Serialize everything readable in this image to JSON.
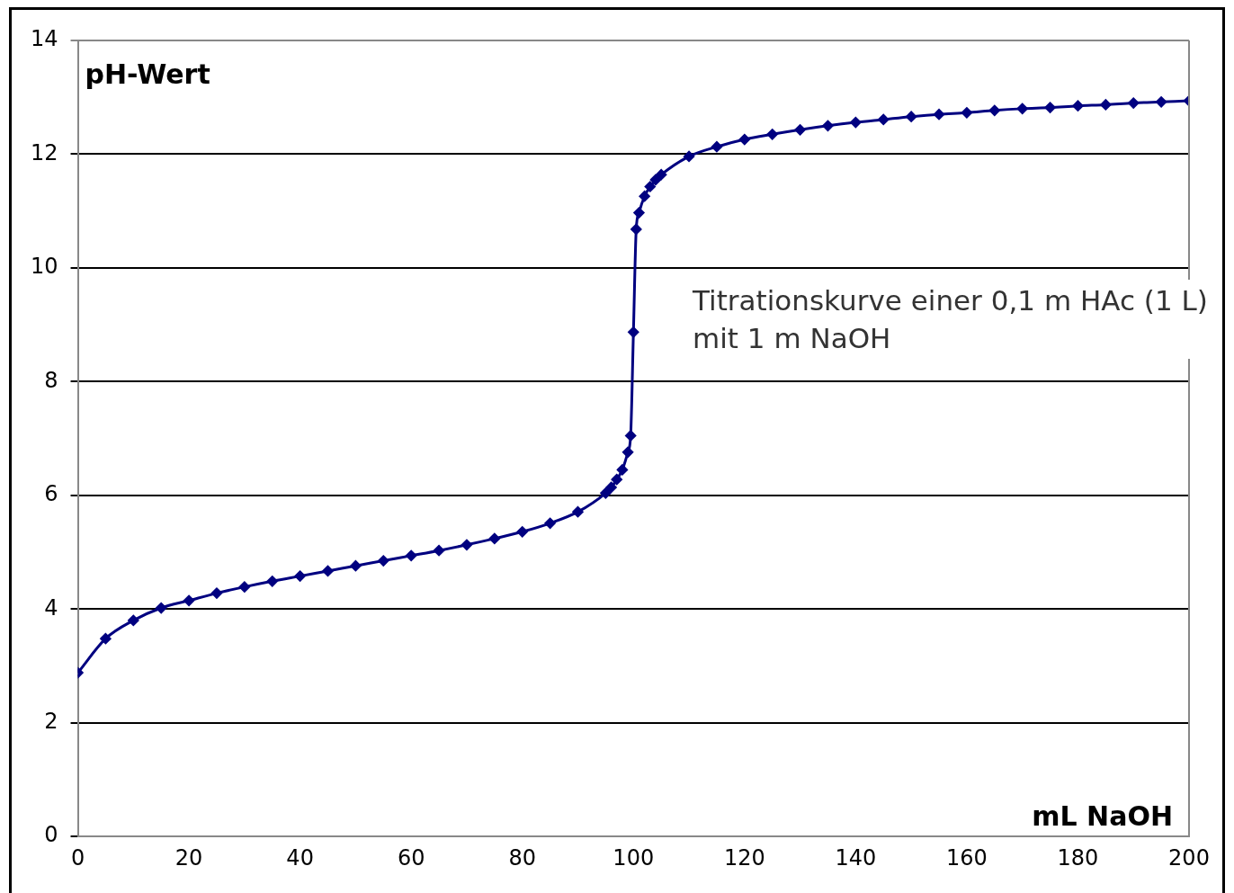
{
  "chart_data": {
    "type": "line",
    "xlabel": "mL NaOH",
    "ylabel": "pH-Wert",
    "annotations": [
      "Titrationskurve einer 0,1 m HAc (1 L) mit 1 m NaOH"
    ],
    "x": [
      0,
      5,
      10,
      15,
      20,
      25,
      30,
      35,
      40,
      45,
      50,
      55,
      60,
      65,
      70,
      75,
      80,
      85,
      90,
      95,
      96,
      97,
      98,
      99,
      99.5,
      100,
      100.5,
      101,
      102,
      103,
      104,
      105,
      110,
      115,
      120,
      125,
      130,
      135,
      140,
      145,
      150,
      155,
      160,
      165,
      170,
      175,
      180,
      185,
      190,
      195,
      200
    ],
    "series": [
      {
        "color": "#000080",
        "values": [
          2.88,
          3.48,
          3.8,
          4.02,
          4.15,
          4.28,
          4.39,
          4.49,
          4.58,
          4.67,
          4.76,
          4.85,
          4.94,
          5.03,
          5.13,
          5.24,
          5.36,
          5.51,
          5.71,
          6.04,
          6.14,
          6.28,
          6.45,
          6.76,
          7.05,
          8.87,
          10.68,
          10.97,
          11.26,
          11.43,
          11.55,
          11.64,
          11.96,
          12.13,
          12.26,
          12.35,
          12.43,
          12.5,
          12.56,
          12.61,
          12.66,
          12.7,
          12.73,
          12.77,
          12.8,
          12.82,
          12.85,
          12.87,
          12.9,
          12.92,
          12.94
        ]
      }
    ],
    "xlim": [
      0,
      200
    ],
    "xticks": [
      0,
      20,
      40,
      60,
      80,
      100,
      120,
      140,
      160,
      180,
      200
    ],
    "ylim": [
      0,
      14
    ],
    "yticks": [
      0,
      2,
      4,
      6,
      8,
      10,
      12,
      14
    ],
    "grid": "y",
    "legend": false,
    "marker": "diamond",
    "line_style": "solid"
  }
}
